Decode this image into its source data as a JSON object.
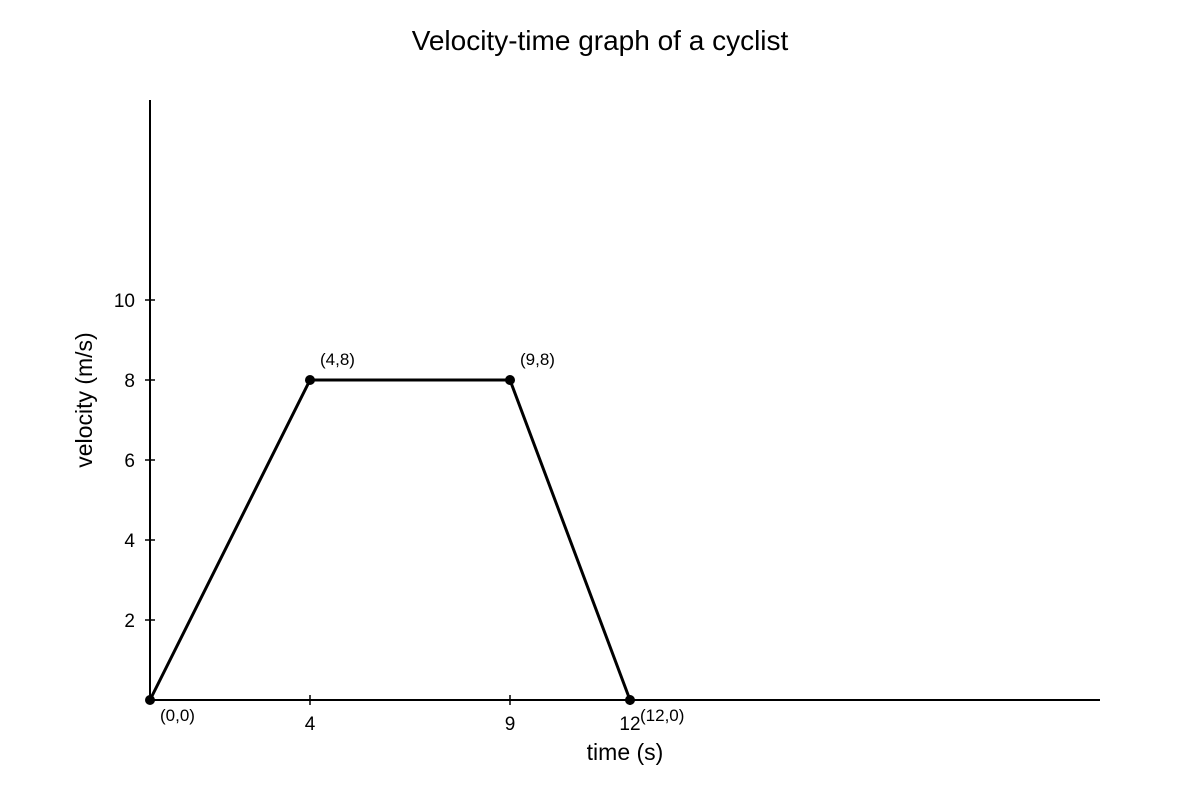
{
  "chart_data": {
    "type": "line",
    "title": "Velocity-time graph of a cyclist",
    "xlabel": "time (s)",
    "ylabel": "velocity (m/s)",
    "x_ticks": [
      4,
      9,
      12
    ],
    "y_ticks": [
      2,
      4,
      6,
      8,
      10
    ],
    "xlim": [
      0,
      23.75
    ],
    "ylim": [
      0,
      15
    ],
    "grid": false,
    "series": [
      {
        "points": [
          {
            "x": 0,
            "y": 0,
            "label": "(0,0)"
          },
          {
            "x": 4,
            "y": 8,
            "label": "(4,8)"
          },
          {
            "x": 9,
            "y": 8,
            "label": "(9,8)"
          },
          {
            "x": 12,
            "y": 0,
            "label": "(12,0)"
          }
        ],
        "color": "#000000"
      }
    ]
  }
}
